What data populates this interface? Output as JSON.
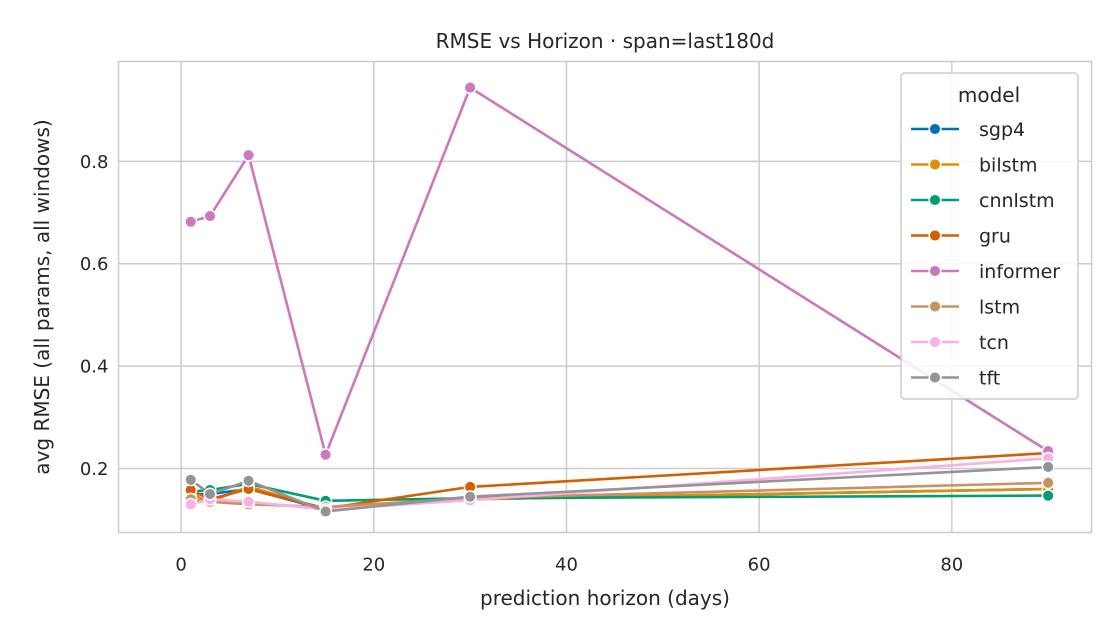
{
  "chart_data": {
    "type": "line",
    "title": "RMSE vs Horizon  ·  span=last180d",
    "xlabel": "prediction horizon (days)",
    "ylabel": "avg RMSE (all params, all windows)",
    "xlim": [
      -6.5,
      94.5
    ],
    "ylim": [
      0.075,
      0.995
    ],
    "xticks": [
      0,
      20,
      40,
      60,
      80
    ],
    "yticks": [
      0.2,
      0.4,
      0.6,
      0.8
    ],
    "grid": true,
    "legend": {
      "title": "model",
      "placement": "upper-right"
    },
    "x": [
      1,
      3,
      7,
      15,
      30,
      90
    ],
    "series": [
      {
        "name": "sgp4",
        "color": "#0173b2",
        "values": [
          0.15,
          0.15,
          0.16,
          0.12,
          0.14,
          0.16
        ]
      },
      {
        "name": "bilstm",
        "color": "#de8f05",
        "values": [
          0.15,
          0.135,
          0.165,
          0.12,
          0.14,
          0.16
        ]
      },
      {
        "name": "cnnlstm",
        "color": "#029e73",
        "values": [
          0.155,
          0.158,
          0.17,
          0.137,
          0.142,
          0.147
        ]
      },
      {
        "name": "gru",
        "color": "#d55e00",
        "values": [
          0.158,
          0.14,
          0.16,
          0.122,
          0.164,
          0.23
        ]
      },
      {
        "name": "informer",
        "color": "#cc78bc",
        "values": [
          0.682,
          0.693,
          0.812,
          0.227,
          0.944,
          0.234
        ]
      },
      {
        "name": "lstm",
        "color": "#ca9161",
        "values": [
          0.14,
          0.135,
          0.13,
          0.125,
          0.142,
          0.172
        ]
      },
      {
        "name": "tcn",
        "color": "#fbafe4",
        "values": [
          0.13,
          0.14,
          0.135,
          0.12,
          0.138,
          0.22
        ]
      },
      {
        "name": "tft",
        "color": "#949494",
        "values": [
          0.178,
          0.15,
          0.176,
          0.116,
          0.145,
          0.203
        ]
      }
    ]
  }
}
